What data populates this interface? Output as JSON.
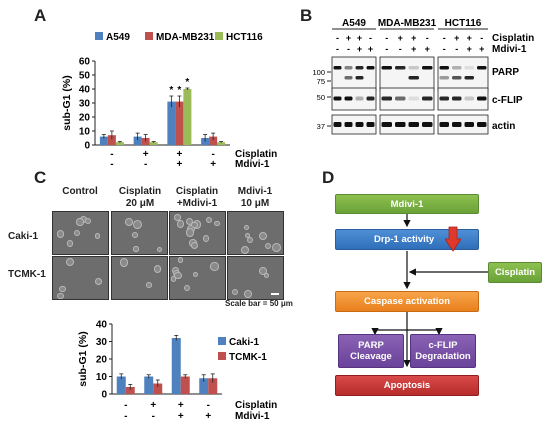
{
  "panels": {
    "a": "A",
    "b": "B",
    "c": "C",
    "d": "D"
  },
  "panelA": {
    "ylabel": "sub-G1 (%)",
    "yticks": [
      "0",
      "10",
      "20",
      "30",
      "40",
      "50",
      "60"
    ],
    "legend": [
      "A549",
      "MDA-MB231",
      "HCT116"
    ],
    "colors": [
      "#4e81bd",
      "#c0504d",
      "#9bbb59"
    ],
    "row1": {
      "label": "Cisplatin",
      "marks": [
        "-",
        "+",
        "+",
        "-"
      ]
    },
    "row2": {
      "label": "Mdivi-1",
      "marks": [
        "-",
        "-",
        "+",
        "+"
      ]
    },
    "star": "*"
  },
  "panelB": {
    "groups": [
      "A549",
      "MDA-MB231",
      "HCT116"
    ],
    "cis_label": "Cisplatin",
    "mdivi_label": "Mdivi-1",
    "cis_marks": [
      "-",
      "+",
      "+",
      "-"
    ],
    "mdivi_marks": [
      "-",
      "-",
      "+",
      "+"
    ],
    "rows": [
      "PARP",
      "c-FLIP",
      "actin"
    ],
    "mw": [
      "100",
      "75",
      "50",
      "37"
    ]
  },
  "panelC": {
    "conditions": [
      {
        "line1": "Control",
        "line2": ""
      },
      {
        "line1": "Cisplatin",
        "line2": "20 μM"
      },
      {
        "line1": "Cisplatin",
        "line2": "+Mdivi-1"
      },
      {
        "line1": "Mdivi-1",
        "line2": "10 μM"
      }
    ],
    "rows": [
      "Caki-1",
      "TCMK-1"
    ],
    "scale": "Scale bar = 50 μm",
    "ylabel": "sub-G1 (%)",
    "yticks": [
      "0",
      "10",
      "20",
      "30",
      "40"
    ],
    "legend": [
      "Caki-1",
      "TCMK-1"
    ],
    "colors": [
      "#4e81bd",
      "#c0504d"
    ],
    "row1": {
      "label": "Cisplatin",
      "marks": [
        "-",
        "+",
        "+",
        "-"
      ]
    },
    "row2": {
      "label": "Mdivi-1",
      "marks": [
        "-",
        "-",
        "+",
        "+"
      ]
    }
  },
  "panelD": {
    "mdivi": "Mdivi-1",
    "drp": "Drp-1 activity",
    "cisplatin": "Cisplatin",
    "caspase": "Caspase activation",
    "parp1": "PARP",
    "parp2": "Cleavage",
    "cflip1": "c-FLIP",
    "cflip2": "Degradation",
    "apoptosis": "Apoptosis"
  },
  "chart_data": [
    {
      "type": "bar",
      "ylabel": "sub-G1 (%)",
      "ylim": [
        0,
        60
      ],
      "categories": [
        "-/-",
        "+/-",
        "+/+",
        "-/+"
      ],
      "series": [
        {
          "name": "A549",
          "values": [
            6,
            6,
            31,
            5
          ],
          "errors": [
            1.5,
            2.5,
            4,
            2.5
          ]
        },
        {
          "name": "MDA-MB231",
          "values": [
            7,
            5,
            31,
            6
          ],
          "errors": [
            3,
            2.5,
            4,
            2.5
          ]
        },
        {
          "name": "HCT116",
          "values": [
            2,
            2,
            40,
            2
          ],
          "errors": [
            0.5,
            0.5,
            0.7,
            0.5
          ]
        }
      ],
      "legend": "top"
    },
    {
      "type": "bar",
      "ylabel": "sub-G1 (%)",
      "ylim": [
        0,
        40
      ],
      "categories": [
        "-/-",
        "+/-",
        "+/+",
        "-/+"
      ],
      "series": [
        {
          "name": "Caki-1",
          "values": [
            10,
            10,
            32,
            9
          ],
          "errors": [
            1.5,
            1,
            1.5,
            2
          ]
        },
        {
          "name": "TCMK-1",
          "values": [
            4,
            6,
            10,
            9
          ],
          "errors": [
            1.5,
            2,
            1,
            2.5
          ]
        }
      ],
      "legend": "right"
    }
  ]
}
